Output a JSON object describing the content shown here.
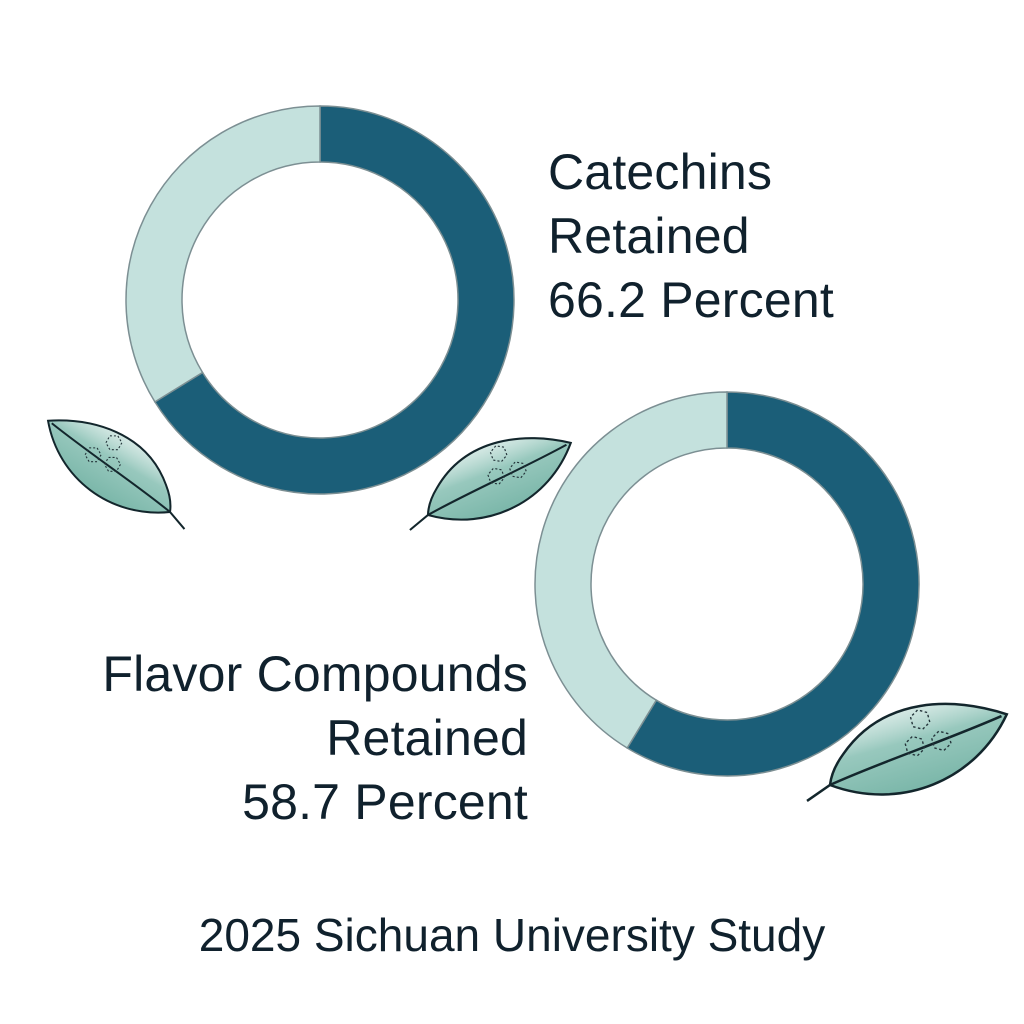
{
  "chart_data": [
    {
      "type": "pie",
      "variant": "donut",
      "name": "Catechins",
      "label_lines": [
        "Catechins",
        "Retained",
        "66.2 Percent"
      ],
      "slices": [
        {
          "label": "Retained",
          "value": 66.2,
          "color": "#1b5e78"
        },
        {
          "label": "Not retained",
          "value": 33.8,
          "color": "#c4e1dd"
        }
      ],
      "start_angle_deg": 0,
      "direction": "clockwise"
    },
    {
      "type": "pie",
      "variant": "donut",
      "name": "Flavor Compounds",
      "label_lines": [
        "Flavor Compounds",
        "Retained",
        "58.7 Percent"
      ],
      "slices": [
        {
          "label": "Retained",
          "value": 58.7,
          "color": "#1b5e78"
        },
        {
          "label": "Not retained",
          "value": 41.3,
          "color": "#c4e1dd"
        }
      ],
      "start_angle_deg": 0,
      "direction": "clockwise"
    }
  ],
  "footer": {
    "source": "2025 Sichuan University Study"
  },
  "colors": {
    "retained": "#1b5e78",
    "remainder": "#c4e1dd",
    "ring_outline": "#7c8f93",
    "leaf_fill": "#6aafa0",
    "leaf_stroke": "#13262c",
    "text": "#10212d"
  },
  "icons": [
    "tea-leaf-icon",
    "molecule-icon"
  ]
}
